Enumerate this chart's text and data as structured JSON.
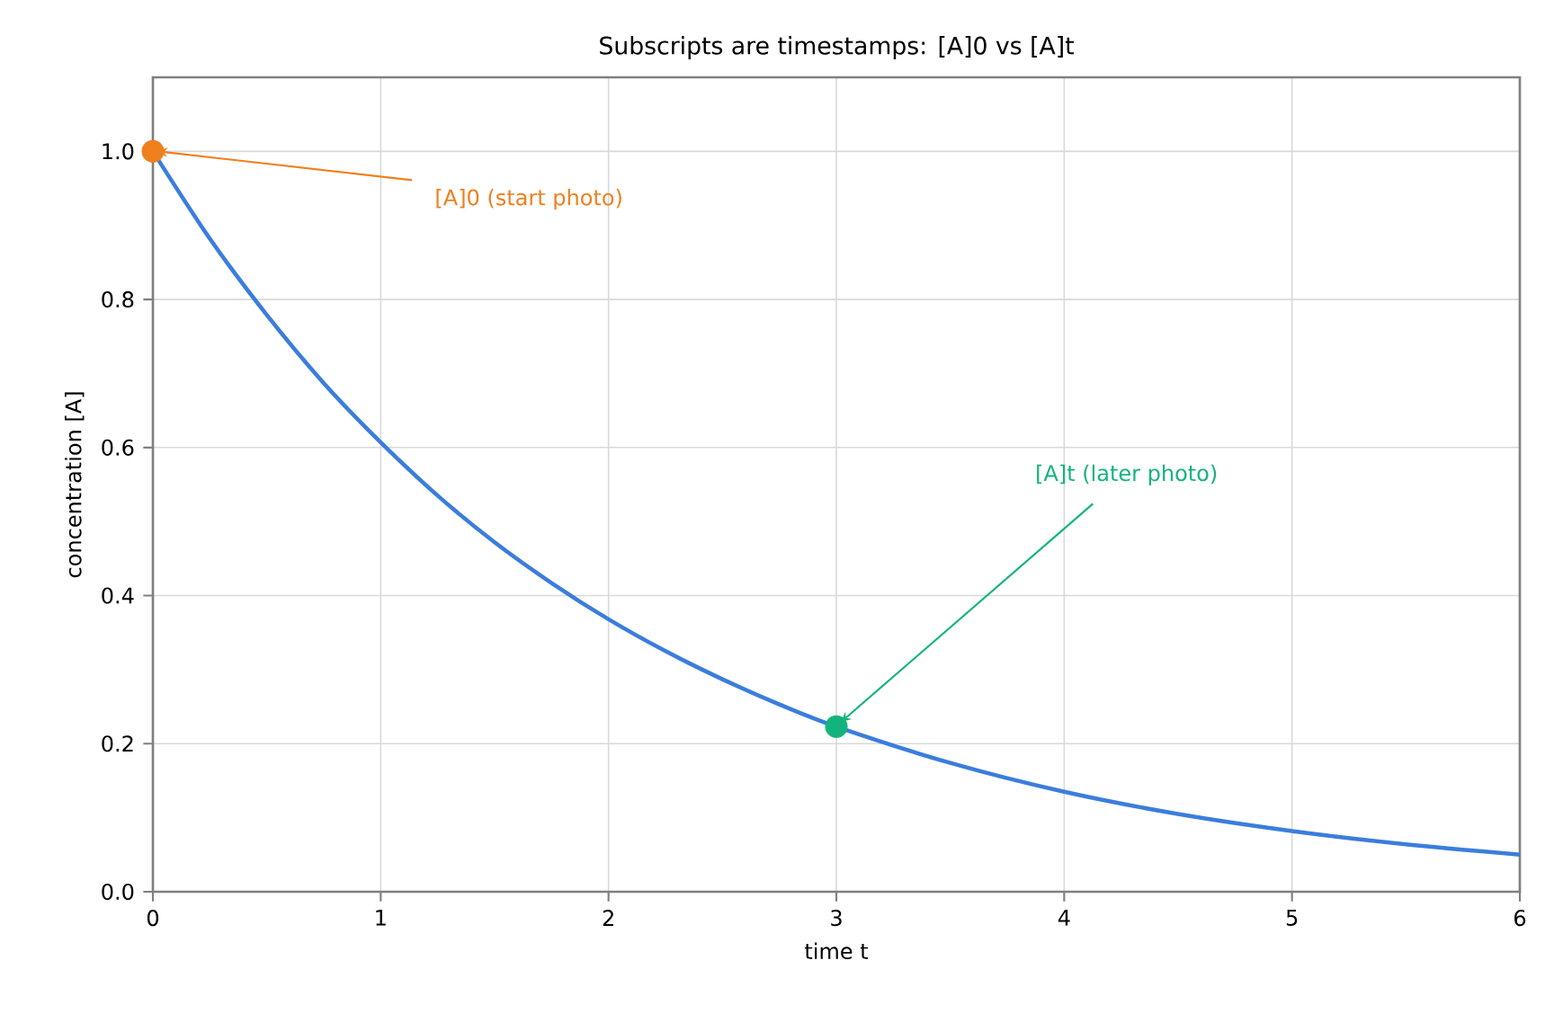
{
  "chart_data": {
    "type": "line",
    "title": "Subscripts are timestamps: [A]0 vs [A]t",
    "xlabel": "time  t",
    "ylabel": "concentration  [A]",
    "series": [
      {
        "color": "#3b7ddd",
        "marker": "none",
        "x": [
          0,
          0.25,
          0.5,
          0.75,
          1,
          1.25,
          1.5,
          1.75,
          2,
          2.25,
          2.5,
          2.75,
          3,
          3.5,
          4,
          4.5,
          5,
          5.5,
          6
        ],
        "values": [
          1.0,
          0.882,
          0.779,
          0.687,
          0.607,
          0.535,
          0.472,
          0.417,
          0.368,
          0.325,
          0.287,
          0.253,
          0.223,
          0.174,
          0.135,
          0.105,
          0.082,
          0.064,
          0.05
        ]
      },
      {
        "type": "scatter",
        "color": "#f07f1e",
        "marker": "circle",
        "x": [
          0
        ],
        "values": [
          1.0
        ]
      },
      {
        "type": "scatter",
        "color": "#14b37d",
        "marker": "circle",
        "x": [
          3
        ],
        "values": [
          0.223
        ]
      }
    ],
    "annotations": [
      {
        "text": "[A]0  (start photo)",
        "x": 0,
        "y": 1.0
      },
      {
        "text": "[A]t  (later photo)",
        "x": 3,
        "y": 0.223
      }
    ],
    "xlim": [
      0,
      6
    ],
    "ylim": [
      0,
      1.1
    ],
    "xticks": [
      0,
      1,
      2,
      3,
      4,
      5,
      6
    ],
    "yticks": [
      {
        "value": 0,
        "label": "0.0"
      },
      {
        "value": 0.2,
        "label": "0.2"
      },
      {
        "value": 0.4,
        "label": "0.4"
      },
      {
        "value": 0.6,
        "label": "0.6"
      },
      {
        "value": 0.8,
        "label": "0.8"
      },
      {
        "value": 1.0,
        "label": "1.0"
      }
    ],
    "grid": true
  }
}
